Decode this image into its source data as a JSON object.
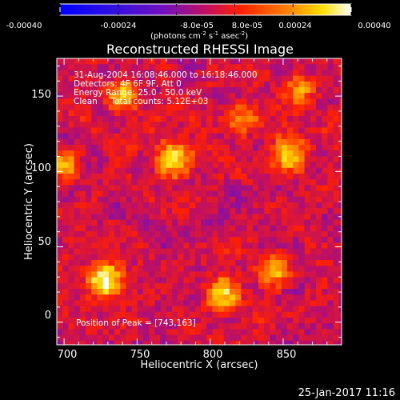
{
  "colorbar": {
    "ticks": [
      "-0.00040",
      "-0.00024",
      "-8.0e-05",
      "8.0e-05",
      "0.00024",
      "0.00040"
    ],
    "units_main": "(photons cm",
    "units_sup1": "-2",
    "units_mid": " s",
    "units_sup2": "-1",
    "units_mid2": " asec",
    "units_sup3": "-2",
    "units_end": ")",
    "range": [
      -0.0004,
      0.0004
    ]
  },
  "annotations": {
    "line1": "31-Aug-2004 16:08:46.000 to 16:18:46.000",
    "line2": "Detectors: 4F 6F 9F, Att 0",
    "line3": "Energy Range: 25.0 - 50.0 keV",
    "line4": "Clean     Total counts: 5.12E+03",
    "peak": "Position of Peak = [743,163]"
  },
  "footer": {
    "timestamp": "25-Jan-2017 11:16"
  },
  "chart_data": {
    "type": "heatmap",
    "title": "Reconstructed RHESSI Image",
    "xlabel": "Heliocentric X (arcsec)",
    "ylabel": "Heliocentric Y (arcsec)",
    "xlim": [
      695,
      890
    ],
    "ylim": [
      -15,
      175
    ],
    "x_ticks": [
      700,
      750,
      800,
      850
    ],
    "y_ticks": [
      0,
      50,
      100,
      150
    ],
    "colormap": "blue-purple-red-yellow-white",
    "colors": [
      "#0000ff",
      "#7010c0",
      "#c01060",
      "#ff2000",
      "#ff8000",
      "#ffe000",
      "#ffffff"
    ],
    "hotspots": [
      {
        "x": 728,
        "y": 28,
        "value": 0.0004
      },
      {
        "x": 775,
        "y": 108,
        "value": 0.00036
      },
      {
        "x": 808,
        "y": 18,
        "value": 0.0003
      },
      {
        "x": 740,
        "y": 150,
        "value": 0.00026
      },
      {
        "x": 855,
        "y": 110,
        "value": 0.0003
      },
      {
        "x": 845,
        "y": 35,
        "value": 0.00024
      },
      {
        "x": 700,
        "y": 105,
        "value": 0.00022
      },
      {
        "x": 820,
        "y": 135,
        "value": 0.0002
      },
      {
        "x": 862,
        "y": 155,
        "value": 0.0002
      }
    ],
    "peak": [
      743,
      163
    ]
  }
}
